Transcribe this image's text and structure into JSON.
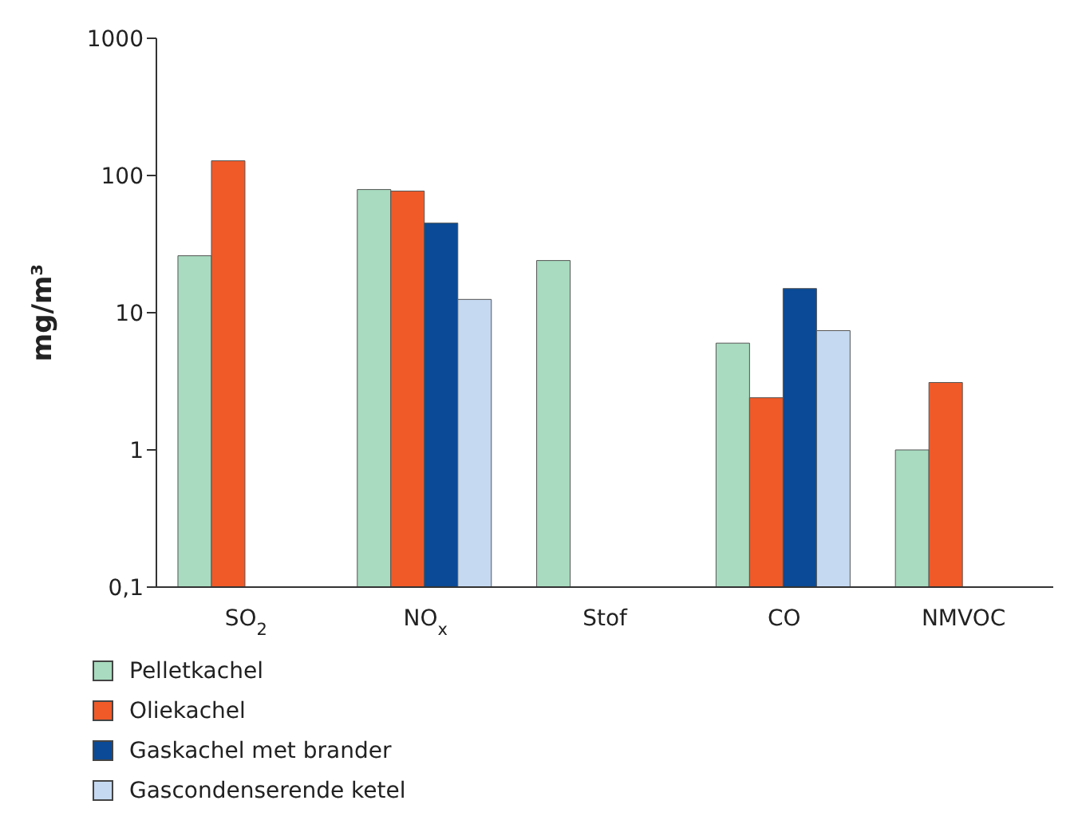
{
  "chart_data": {
    "type": "bar",
    "ylabel": "mg/m³",
    "categories": [
      "SO$_{2}$",
      "NO$_{x}$",
      "Stof",
      "CO",
      "NMVOC"
    ],
    "series": [
      {
        "name": "Pelletkachel",
        "color": "#a8dbbf",
        "values": [
          26,
          79,
          24,
          6,
          1
        ]
      },
      {
        "name": "Oliekachel",
        "color": "#f05a28",
        "values": [
          128,
          77,
          null,
          2.4,
          3.1
        ]
      },
      {
        "name": "Gaskachel met brander",
        "color": "#0a4a96",
        "values": [
          null,
          45,
          null,
          15,
          null
        ]
      },
      {
        "name": "Gascondenserende ketel",
        "color": "#c5d9f1",
        "values": [
          null,
          12.5,
          null,
          7.4,
          null
        ]
      }
    ],
    "log": "y",
    "ylim": [
      0.1,
      1000
    ],
    "yticks": [
      {
        "value": 0.1,
        "label": "0,1"
      },
      1,
      10,
      100,
      1000
    ],
    "legend": "bottom"
  }
}
